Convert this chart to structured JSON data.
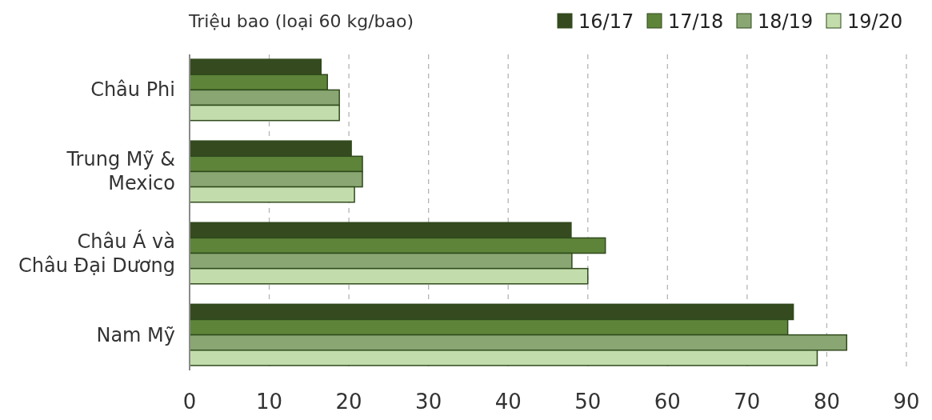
{
  "chart_data": {
    "type": "bar",
    "orientation": "horizontal",
    "title": "Triệu bao (loại 60 kg/bao)",
    "categories": [
      "Châu Phi",
      "Trung Mỹ &\nMexico",
      "Châu Á và\nChâu Đại Dương",
      "Nam Mỹ"
    ],
    "series": [
      {
        "name": "16/17",
        "color": "#364a1f",
        "values": [
          16.5,
          20.3,
          47.9,
          75.8
        ]
      },
      {
        "name": "17/18",
        "color": "#5e843a",
        "values": [
          17.3,
          21.7,
          52.2,
          75.1
        ]
      },
      {
        "name": "18/19",
        "color": "#8aa672",
        "values": [
          18.8,
          21.7,
          48.0,
          82.5
        ]
      },
      {
        "name": "19/20",
        "color": "#c3dcab",
        "values": [
          18.8,
          20.7,
          50.0,
          78.8
        ]
      }
    ],
    "xlim": [
      0,
      90
    ],
    "xticks": [
      0,
      10,
      20,
      30,
      40,
      50,
      60,
      70,
      80,
      90
    ],
    "grid": "x",
    "legend": "top right"
  }
}
